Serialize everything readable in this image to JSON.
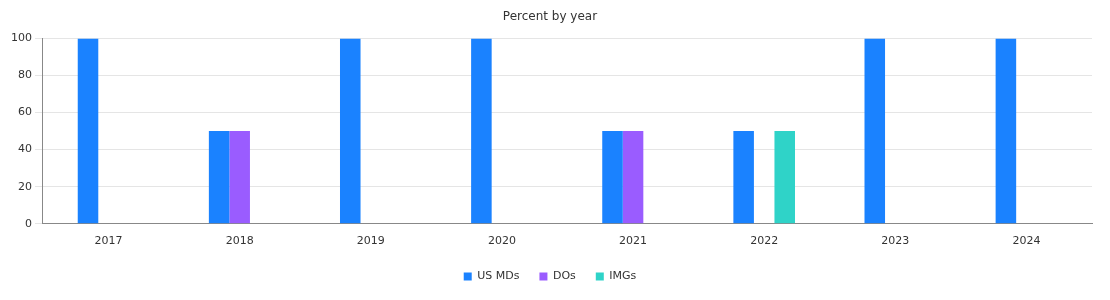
{
  "chart_data": {
    "type": "bar",
    "title": "Percent by year",
    "categories": [
      "2017",
      "2018",
      "2019",
      "2020",
      "2021",
      "2022",
      "2023",
      "2024"
    ],
    "series": [
      {
        "name": "US MDs",
        "color": "#1a82ff",
        "values": [
          100,
          50,
          100,
          100,
          50,
          50,
          100,
          100
        ]
      },
      {
        "name": "DOs",
        "color": "#9a5cff",
        "values": [
          0,
          50,
          0,
          0,
          50,
          0,
          0,
          0
        ]
      },
      {
        "name": "IMGs",
        "color": "#2fd3c8",
        "values": [
          0,
          0,
          0,
          0,
          0,
          50,
          0,
          0
        ]
      }
    ],
    "ylim": [
      0,
      100
    ],
    "yticks": [
      0,
      20,
      40,
      60,
      80,
      100
    ],
    "grid": "y",
    "legend": "bottom"
  }
}
